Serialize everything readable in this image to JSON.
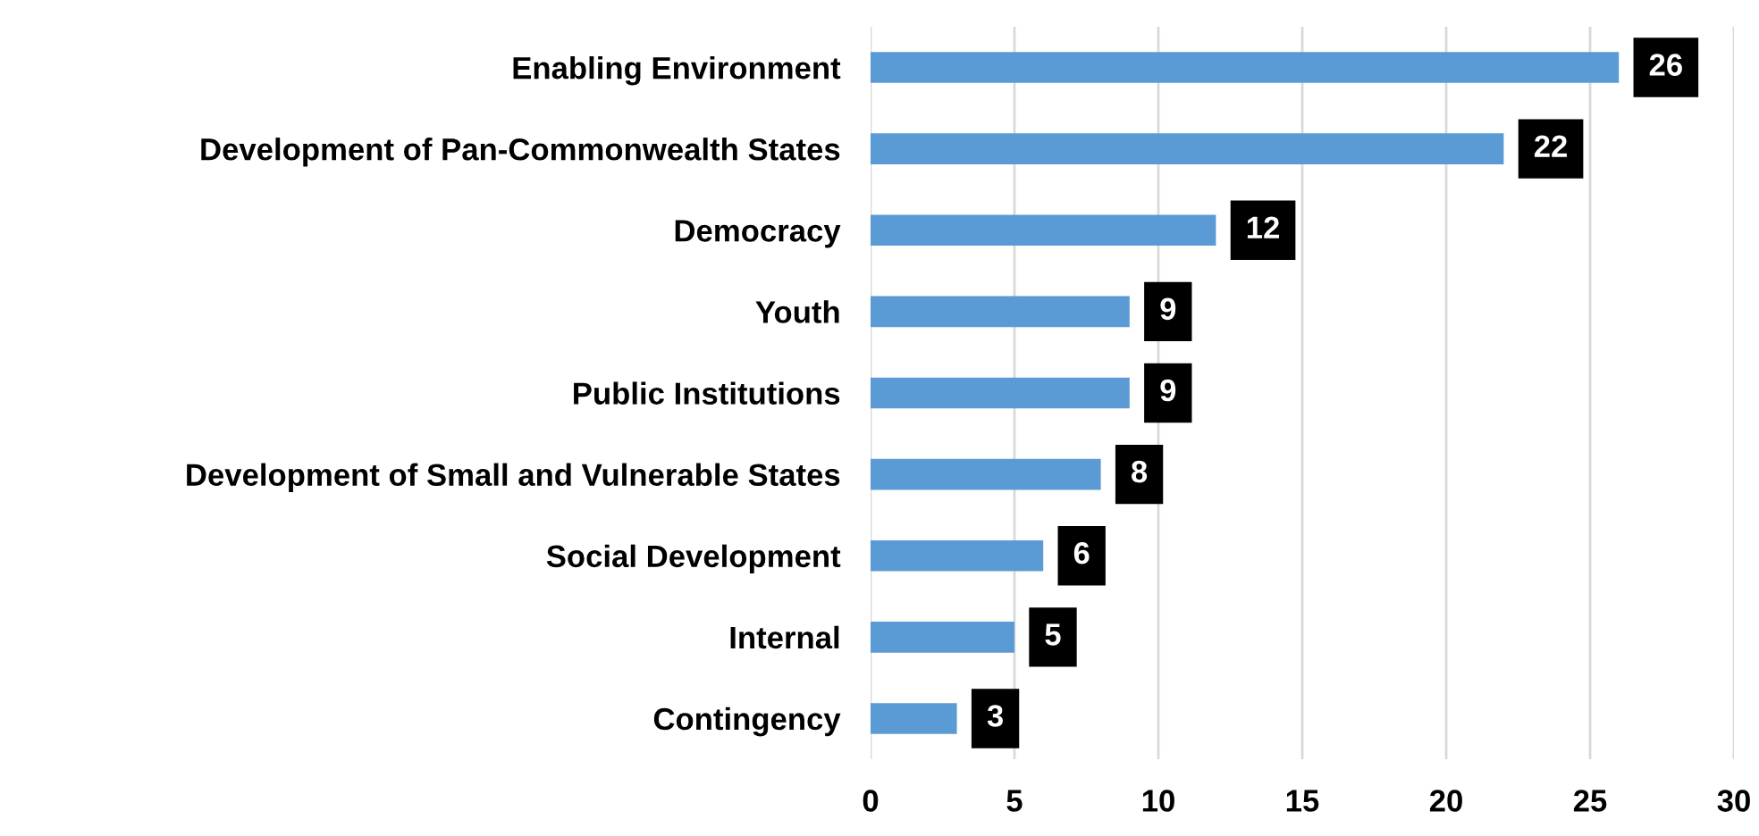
{
  "chart_data": {
    "type": "bar",
    "orientation": "horizontal",
    "categories": [
      "Enabling Environment",
      "Development of Pan-Commonwealth States",
      "Democracy",
      "Youth",
      "Public Institutions",
      "Development of Small and Vulnerable States",
      "Social Development",
      "Internal",
      "Contingency"
    ],
    "values": [
      26,
      22,
      12,
      9,
      9,
      8,
      6,
      5,
      3
    ],
    "color": "#5b9bd5",
    "xlim": [
      0,
      30
    ],
    "xticks": [
      0,
      5,
      10,
      15,
      20,
      25,
      30
    ],
    "grid": "x",
    "data_labels": true
  }
}
